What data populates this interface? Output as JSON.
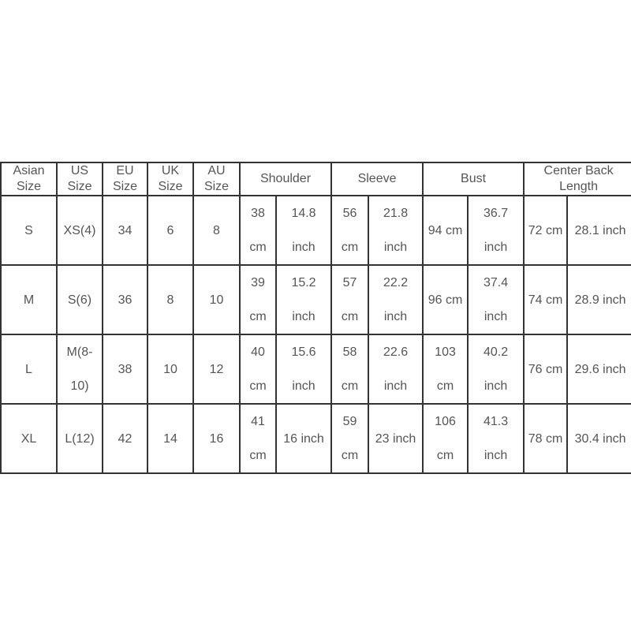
{
  "headers": [
    {
      "label": "Asian\nSize",
      "span": 1
    },
    {
      "label": "US\nSize",
      "span": 1
    },
    {
      "label": "EU\nSize",
      "span": 1
    },
    {
      "label": "UK\nSize",
      "span": 1
    },
    {
      "label": "AU\nSize",
      "span": 1
    },
    {
      "label": "Shoulder",
      "span": 2
    },
    {
      "label": "Sleeve",
      "span": 2
    },
    {
      "label": "Bust",
      "span": 2
    },
    {
      "label": "Center Back\nLength",
      "span": 2
    }
  ],
  "rows": [
    [
      "S",
      "XS(4)",
      "34",
      "6",
      "8",
      "38\ncm",
      "14.8\ninch",
      "56\ncm",
      "21.8\ninch",
      "94 cm",
      "36.7\ninch",
      "72 cm",
      "28.1 inch"
    ],
    [
      "M",
      "S(6)",
      "36",
      "8",
      "10",
      "39\ncm",
      "15.2\ninch",
      "57\ncm",
      "22.2\ninch",
      "96 cm",
      "37.4\ninch",
      "74 cm",
      "28.9 inch"
    ],
    [
      "L",
      "M(8-\n10)",
      "38",
      "10",
      "12",
      "40\ncm",
      "15.6\ninch",
      "58\ncm",
      "22.6\ninch",
      "103\ncm",
      "40.2\ninch",
      "76 cm",
      "29.6 inch"
    ],
    [
      "XL",
      "L(12)",
      "42",
      "14",
      "16",
      "41\ncm",
      "16 inch",
      "59\ncm",
      "23 inch",
      "106\ncm",
      "41.3\ninch",
      "78 cm",
      "30.4 inch"
    ]
  ]
}
